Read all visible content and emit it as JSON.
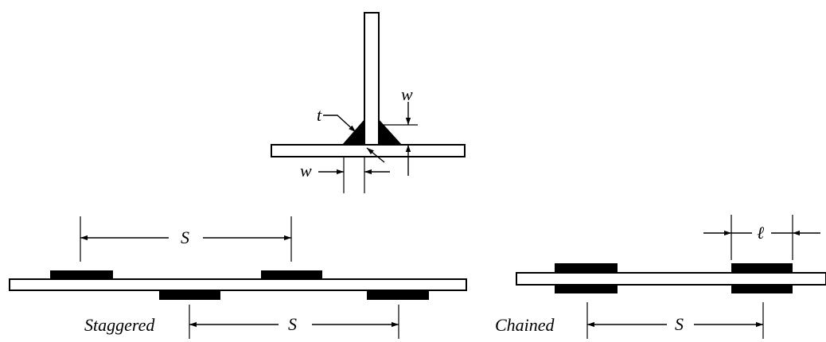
{
  "labels": {
    "t": "t",
    "w_vertical": "w",
    "w_horizontal": "w",
    "s_staggered_top": "S",
    "s_staggered_bottom": "S",
    "s_chained": "S",
    "l_chained": "ℓ",
    "caption_staggered": "Staggered",
    "caption_chained": "Chained"
  },
  "colors": {
    "ink": "#000000",
    "background": "#ffffff"
  }
}
